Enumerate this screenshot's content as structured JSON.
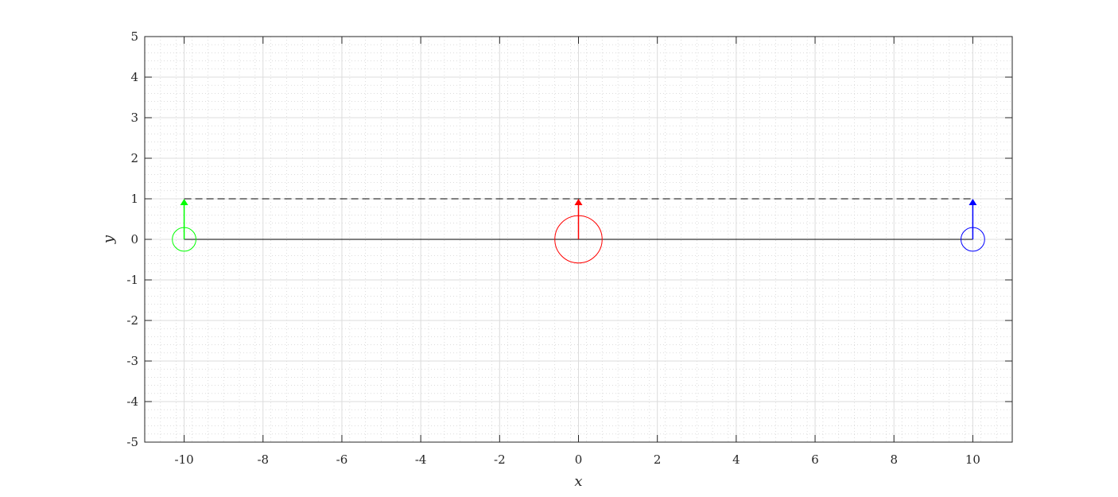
{
  "chart_data": {
    "type": "scatter",
    "title": "",
    "xlabel": "x",
    "ylabel": "y",
    "xlim": [
      -11,
      11
    ],
    "ylim": [
      -5,
      5
    ],
    "x_ticks": [
      -10,
      -8,
      -6,
      -4,
      -2,
      0,
      2,
      4,
      6,
      8,
      10
    ],
    "y_ticks": [
      -5,
      -4,
      -3,
      -2,
      -1,
      0,
      1,
      2,
      3,
      4,
      5
    ],
    "x_tick_labels": [
      "-10",
      "-8",
      "-6",
      "-4",
      "-2",
      "0",
      "2",
      "4",
      "6",
      "8",
      "10"
    ],
    "y_tick_labels": [
      "-5",
      "-4",
      "-3",
      "-2",
      "-1",
      "0",
      "1",
      "2",
      "3",
      "4",
      "5"
    ],
    "grid": true,
    "minor_grid": true,
    "lines": [
      {
        "name_hint": "baseline",
        "points": [
          [
            -10,
            0
          ],
          [
            10,
            0
          ]
        ],
        "color": "#000000",
        "style": "solid"
      },
      {
        "name_hint": "dashed-top",
        "points": [
          [
            -10,
            1
          ],
          [
            10,
            1
          ]
        ],
        "color": "#000000",
        "style": "dashed"
      }
    ],
    "circles": [
      {
        "name_hint": "left",
        "center": [
          -10,
          0
        ],
        "radius": 0.3,
        "color": "#00ff00"
      },
      {
        "name_hint": "center",
        "center": [
          0,
          0
        ],
        "radius": 0.6,
        "color": "#ff0000"
      },
      {
        "name_hint": "right",
        "center": [
          10,
          0
        ],
        "radius": 0.3,
        "color": "#0000ff"
      }
    ],
    "arrows": [
      {
        "name_hint": "left",
        "from": [
          -10,
          0
        ],
        "to": [
          -10,
          1
        ],
        "color": "#00ff00"
      },
      {
        "name_hint": "center",
        "from": [
          0,
          0
        ],
        "to": [
          0,
          1
        ],
        "color": "#ff0000"
      },
      {
        "name_hint": "right",
        "from": [
          10,
          0
        ],
        "to": [
          10,
          1
        ],
        "color": "#0000ff"
      }
    ]
  }
}
